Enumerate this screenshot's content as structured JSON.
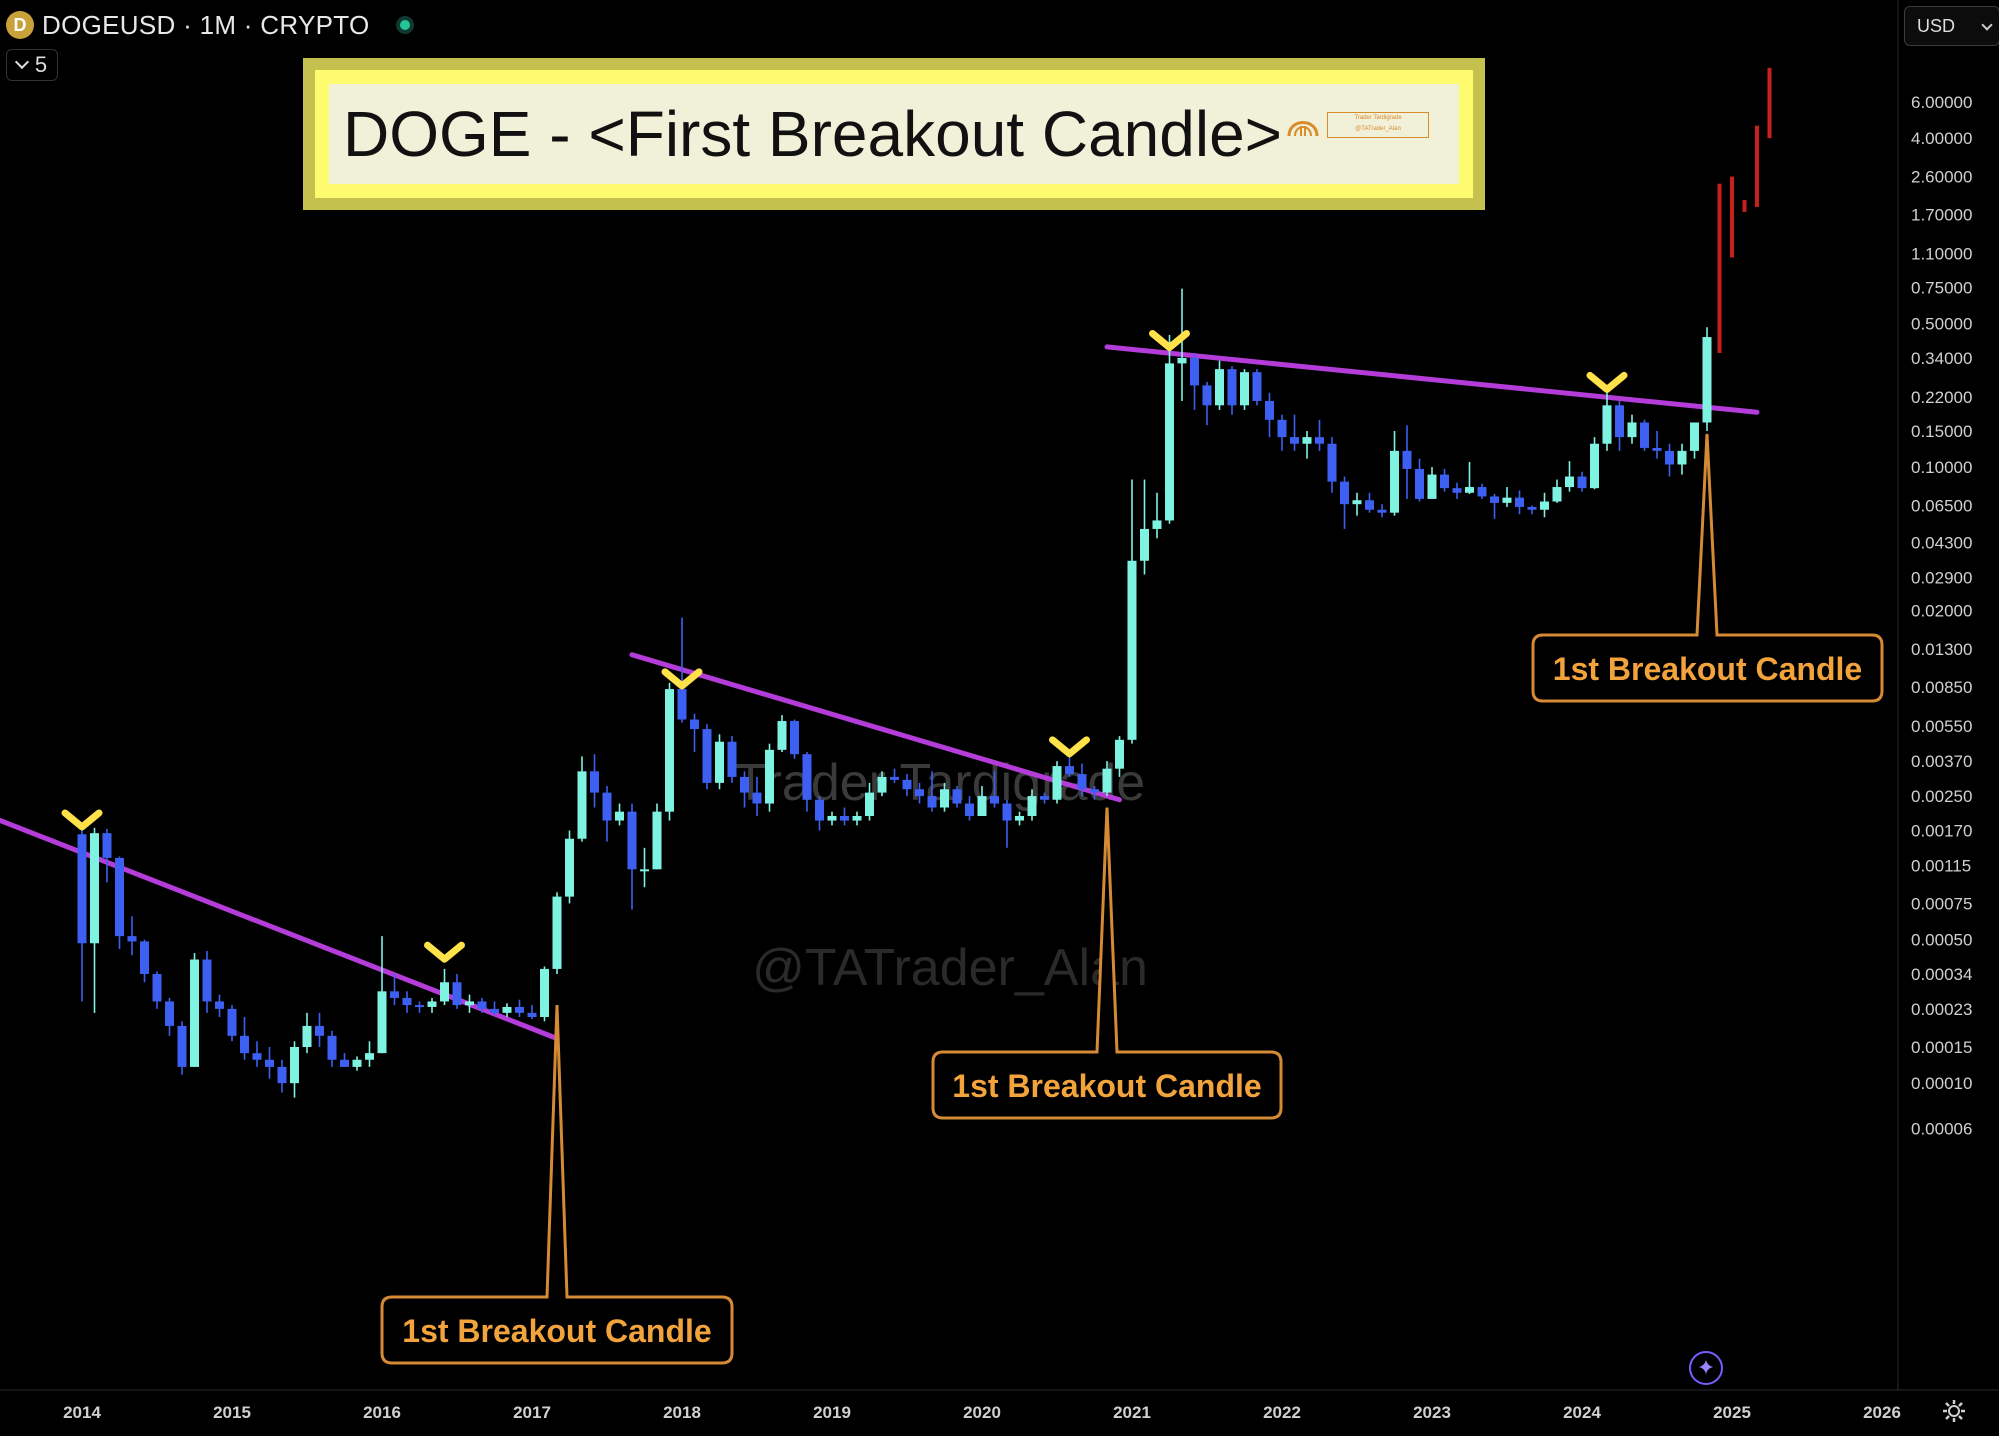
{
  "header": {
    "symbol": "DOGEUSD · 1M · CRYPTO",
    "coin_icon": "D",
    "indicator_count": "5"
  },
  "title": {
    "text": "DOGE - <First Breakout Candle>",
    "logo_text_1": "Trader Tardigrade",
    "logo_text_2": "@TATrader_Alan"
  },
  "currency_selector": "USD",
  "watermarks": [
    "Trader Tardigrade",
    "@TATrader_Alan"
  ],
  "colors": {
    "background": "#000000",
    "bull_candle": "#7ff3e1",
    "bear_candle": "#3d5ff2",
    "trendline": "#b43cd8",
    "marker": "#ffe14a",
    "callout_border": "#d58a35",
    "callout_text": "#f3a33c",
    "projection": "#c8201c",
    "axis_text": "#d0d0d0"
  },
  "chart_data": {
    "type": "candlestick",
    "scale": "log",
    "x_ticks": [
      "2014",
      "2015",
      "2016",
      "2017",
      "2018",
      "2019",
      "2020",
      "2021",
      "2022",
      "2023",
      "2024",
      "2025",
      "2026"
    ],
    "y_ticks": [
      "6.00000",
      "4.00000",
      "2.60000",
      "1.70000",
      "1.10000",
      "0.75000",
      "0.50000",
      "0.34000",
      "0.22000",
      "0.15000",
      "0.10000",
      "0.06500",
      "0.04300",
      "0.02900",
      "0.02000",
      "0.01300",
      "0.00850",
      "0.00550",
      "0.00370",
      "0.00250",
      "0.00170",
      "0.00115",
      "0.00075",
      "0.00050",
      "0.00034",
      "0.00023",
      "0.00015",
      "0.00010",
      "0.00006"
    ],
    "candles": [
      [
        "2014-01",
        0.00163,
        0.00178,
        0.00025,
        0.00048
      ],
      [
        "2014-02",
        0.00048,
        0.00175,
        0.00022,
        0.00165
      ],
      [
        "2014-03",
        0.00165,
        0.00173,
        0.00095,
        0.00125
      ],
      [
        "2014-04",
        0.00125,
        0.00127,
        0.00045,
        0.00052
      ],
      [
        "2014-05",
        0.00052,
        0.00065,
        0.00042,
        0.00049
      ],
      [
        "2014-06",
        0.00049,
        0.0005,
        0.00031,
        0.00034
      ],
      [
        "2014-07",
        0.00034,
        0.00035,
        0.00023,
        0.00025
      ],
      [
        "2014-08",
        0.00025,
        0.00026,
        0.00017,
        0.00019
      ],
      [
        "2014-09",
        0.00019,
        0.0002,
        0.00011,
        0.00012
      ],
      [
        "2014-10",
        0.00012,
        0.00043,
        0.00012,
        0.0004
      ],
      [
        "2014-11",
        0.0004,
        0.00044,
        0.00022,
        0.00025
      ],
      [
        "2014-12",
        0.00025,
        0.00027,
        0.00021,
        0.00023
      ],
      [
        "2015-01",
        0.00023,
        0.00024,
        0.00016,
        0.00017
      ],
      [
        "2015-02",
        0.00017,
        0.00021,
        0.00013,
        0.00014
      ],
      [
        "2015-03",
        0.00014,
        0.00016,
        0.00012,
        0.00013
      ],
      [
        "2015-04",
        0.00013,
        0.00015,
        0.000105,
        0.00012
      ],
      [
        "2015-05",
        0.00012,
        0.00013,
        9e-05,
        0.0001
      ],
      [
        "2015-06",
        0.0001,
        0.00016,
        8.5e-05,
        0.00015
      ],
      [
        "2015-07",
        0.00015,
        0.00022,
        0.00014,
        0.00019
      ],
      [
        "2015-08",
        0.00019,
        0.00022,
        0.00015,
        0.00017
      ],
      [
        "2015-09",
        0.00017,
        0.00018,
        0.00012,
        0.00013
      ],
      [
        "2015-10",
        0.00013,
        0.00014,
        0.00012,
        0.00012
      ],
      [
        "2015-11",
        0.00012,
        0.000135,
        0.000115,
        0.00013
      ],
      [
        "2015-12",
        0.00013,
        0.00016,
        0.00012,
        0.00014
      ],
      [
        "2016-01",
        0.00014,
        0.00052,
        0.00014,
        0.00028
      ],
      [
        "2016-02",
        0.00028,
        0.00034,
        0.00024,
        0.00026
      ],
      [
        "2016-03",
        0.00026,
        0.00028,
        0.00022,
        0.00024
      ],
      [
        "2016-04",
        0.00024,
        0.00025,
        0.00022,
        0.000235
      ],
      [
        "2016-05",
        0.000235,
        0.00026,
        0.00022,
        0.00025
      ],
      [
        "2016-06",
        0.00025,
        0.00036,
        0.00024,
        0.00031
      ],
      [
        "2016-07",
        0.00031,
        0.00034,
        0.00023,
        0.00024
      ],
      [
        "2016-08",
        0.00024,
        0.00027,
        0.00022,
        0.00025
      ],
      [
        "2016-09",
        0.00025,
        0.00026,
        0.00022,
        0.00023
      ],
      [
        "2016-10",
        0.00023,
        0.00025,
        0.000215,
        0.00022
      ],
      [
        "2016-11",
        0.00022,
        0.000245,
        0.00021,
        0.000235
      ],
      [
        "2016-12",
        0.000235,
        0.000255,
        0.00021,
        0.00022
      ],
      [
        "2017-01",
        0.00022,
        0.00024,
        0.000205,
        0.00021
      ],
      [
        "2017-02",
        0.00021,
        0.00037,
        0.0002,
        0.00036
      ],
      [
        "2017-03",
        0.00036,
        0.00085,
        0.00034,
        0.00081
      ],
      [
        "2017-04",
        0.00081,
        0.0017,
        0.00075,
        0.00155
      ],
      [
        "2017-05",
        0.00155,
        0.0039,
        0.0015,
        0.0033
      ],
      [
        "2017-06",
        0.0033,
        0.004,
        0.0022,
        0.0026
      ],
      [
        "2017-07",
        0.0026,
        0.0028,
        0.0015,
        0.0019
      ],
      [
        "2017-08",
        0.0019,
        0.0023,
        0.0018,
        0.0021
      ],
      [
        "2017-09",
        0.0021,
        0.0023,
        0.0007,
        0.0011
      ],
      [
        "2017-10",
        0.0011,
        0.0014,
        0.0009,
        0.0011
      ],
      [
        "2017-11",
        0.0011,
        0.0023,
        0.0011,
        0.0021
      ],
      [
        "2017-12",
        0.0021,
        0.0089,
        0.0019,
        0.0083
      ],
      [
        "2018-01",
        0.0083,
        0.0185,
        0.0057,
        0.0059
      ],
      [
        "2018-02",
        0.0059,
        0.0063,
        0.0041,
        0.0053
      ],
      [
        "2018-03",
        0.0053,
        0.0056,
        0.0027,
        0.0029
      ],
      [
        "2018-04",
        0.0029,
        0.005,
        0.0027,
        0.0046
      ],
      [
        "2018-05",
        0.0046,
        0.0049,
        0.0029,
        0.0031
      ],
      [
        "2018-06",
        0.0031,
        0.0033,
        0.0022,
        0.0026
      ],
      [
        "2018-07",
        0.0026,
        0.0031,
        0.002,
        0.0023
      ],
      [
        "2018-08",
        0.0023,
        0.0045,
        0.0021,
        0.0042
      ],
      [
        "2018-09",
        0.0042,
        0.0062,
        0.0041,
        0.0058
      ],
      [
        "2018-10",
        0.0058,
        0.0059,
        0.0038,
        0.004
      ],
      [
        "2018-11",
        0.004,
        0.0041,
        0.0021,
        0.0024
      ],
      [
        "2018-12",
        0.0024,
        0.0025,
        0.0017,
        0.0019
      ],
      [
        "2019-01",
        0.0019,
        0.0021,
        0.0018,
        0.002
      ],
      [
        "2019-02",
        0.002,
        0.0022,
        0.0018,
        0.0019
      ],
      [
        "2019-03",
        0.0019,
        0.0021,
        0.0018,
        0.002
      ],
      [
        "2019-04",
        0.002,
        0.0029,
        0.0019,
        0.0026
      ],
      [
        "2019-05",
        0.0026,
        0.0033,
        0.0025,
        0.0031
      ],
      [
        "2019-06",
        0.0031,
        0.0034,
        0.0029,
        0.003
      ],
      [
        "2019-07",
        0.003,
        0.0032,
        0.0025,
        0.0027
      ],
      [
        "2019-08",
        0.0027,
        0.0029,
        0.0023,
        0.0025
      ],
      [
        "2019-09",
        0.0025,
        0.0033,
        0.0021,
        0.0022
      ],
      [
        "2019-10",
        0.0022,
        0.0029,
        0.0021,
        0.0027
      ],
      [
        "2019-11",
        0.0027,
        0.0028,
        0.0022,
        0.0023
      ],
      [
        "2019-12",
        0.0023,
        0.0025,
        0.0019,
        0.002
      ],
      [
        "2020-01",
        0.002,
        0.0028,
        0.002,
        0.0025
      ],
      [
        "2020-02",
        0.0025,
        0.0033,
        0.0022,
        0.0023
      ],
      [
        "2020-03",
        0.0023,
        0.0024,
        0.0014,
        0.0019
      ],
      [
        "2020-04",
        0.0019,
        0.0021,
        0.0018,
        0.002
      ],
      [
        "2020-05",
        0.002,
        0.0027,
        0.0019,
        0.0025
      ],
      [
        "2020-06",
        0.0025,
        0.0026,
        0.0023,
        0.0024
      ],
      [
        "2020-07",
        0.0024,
        0.0037,
        0.0023,
        0.0035
      ],
      [
        "2020-08",
        0.0035,
        0.0042,
        0.0031,
        0.0032
      ],
      [
        "2020-09",
        0.0032,
        0.0036,
        0.0025,
        0.0027
      ],
      [
        "2020-10",
        0.0027,
        0.0028,
        0.0024,
        0.0026
      ],
      [
        "2020-11",
        0.0026,
        0.0037,
        0.0025,
        0.0034
      ],
      [
        "2020-12",
        0.0034,
        0.0049,
        0.0031,
        0.0047
      ],
      [
        "2021-01",
        0.0047,
        0.087,
        0.0045,
        0.035
      ],
      [
        "2021-02",
        0.035,
        0.087,
        0.03,
        0.05
      ],
      [
        "2021-03",
        0.05,
        0.075,
        0.045,
        0.055
      ],
      [
        "2021-04",
        0.055,
        0.44,
        0.053,
        0.32
      ],
      [
        "2021-05",
        0.32,
        0.74,
        0.21,
        0.34
      ],
      [
        "2021-06",
        0.34,
        0.36,
        0.19,
        0.25
      ],
      [
        "2021-07",
        0.25,
        0.26,
        0.16,
        0.2
      ],
      [
        "2021-08",
        0.2,
        0.33,
        0.19,
        0.3
      ],
      [
        "2021-09",
        0.3,
        0.31,
        0.18,
        0.2
      ],
      [
        "2021-10",
        0.2,
        0.3,
        0.19,
        0.29
      ],
      [
        "2021-11",
        0.29,
        0.3,
        0.2,
        0.21
      ],
      [
        "2021-12",
        0.21,
        0.23,
        0.14,
        0.17
      ],
      [
        "2022-01",
        0.17,
        0.18,
        0.12,
        0.14
      ],
      [
        "2022-02",
        0.14,
        0.18,
        0.12,
        0.13
      ],
      [
        "2022-03",
        0.13,
        0.15,
        0.11,
        0.14
      ],
      [
        "2022-04",
        0.14,
        0.17,
        0.12,
        0.13
      ],
      [
        "2022-05",
        0.13,
        0.14,
        0.075,
        0.085
      ],
      [
        "2022-06",
        0.085,
        0.09,
        0.05,
        0.066
      ],
      [
        "2022-07",
        0.066,
        0.075,
        0.058,
        0.069
      ],
      [
        "2022-08",
        0.069,
        0.075,
        0.06,
        0.062
      ],
      [
        "2022-09",
        0.062,
        0.066,
        0.057,
        0.06
      ],
      [
        "2022-10",
        0.06,
        0.15,
        0.058,
        0.12
      ],
      [
        "2022-11",
        0.12,
        0.16,
        0.07,
        0.098
      ],
      [
        "2022-12",
        0.098,
        0.11,
        0.068,
        0.07
      ],
      [
        "2023-01",
        0.07,
        0.1,
        0.07,
        0.092
      ],
      [
        "2023-02",
        0.092,
        0.098,
        0.076,
        0.079
      ],
      [
        "2023-03",
        0.079,
        0.084,
        0.07,
        0.075
      ],
      [
        "2023-04",
        0.075,
        0.106,
        0.074,
        0.08
      ],
      [
        "2023-05",
        0.08,
        0.083,
        0.07,
        0.072
      ],
      [
        "2023-06",
        0.072,
        0.074,
        0.056,
        0.067
      ],
      [
        "2023-07",
        0.067,
        0.08,
        0.064,
        0.071
      ],
      [
        "2023-08",
        0.071,
        0.077,
        0.059,
        0.064
      ],
      [
        "2023-09",
        0.064,
        0.065,
        0.059,
        0.062
      ],
      [
        "2023-10",
        0.062,
        0.075,
        0.057,
        0.068
      ],
      [
        "2023-11",
        0.068,
        0.087,
        0.067,
        0.08
      ],
      [
        "2023-12",
        0.08,
        0.107,
        0.076,
        0.09
      ],
      [
        "2024-01",
        0.09,
        0.095,
        0.076,
        0.079
      ],
      [
        "2024-02",
        0.079,
        0.14,
        0.078,
        0.13
      ],
      [
        "2024-03",
        0.13,
        0.23,
        0.12,
        0.2
      ],
      [
        "2024-04",
        0.2,
        0.21,
        0.12,
        0.14
      ],
      [
        "2024-05",
        0.14,
        0.18,
        0.13,
        0.165
      ],
      [
        "2024-06",
        0.165,
        0.17,
        0.12,
        0.124
      ],
      [
        "2024-07",
        0.124,
        0.15,
        0.11,
        0.12
      ],
      [
        "2024-08",
        0.12,
        0.13,
        0.09,
        0.103
      ],
      [
        "2024-09",
        0.103,
        0.13,
        0.092,
        0.12
      ],
      [
        "2024-10",
        0.12,
        0.16,
        0.11,
        0.165
      ],
      [
        "2024-11",
        0.165,
        0.48,
        0.15,
        0.43
      ]
    ],
    "trendlines": [
      {
        "from": [
          "2013-06",
          0.00195
        ],
        "to": [
          "2017-03",
          0.000165
        ]
      },
      {
        "from": [
          "2017-09",
          0.0122
        ],
        "to": [
          "2020-12",
          0.0024
        ]
      },
      {
        "from": [
          "2020-11",
          0.385
        ],
        "to": [
          "2025-03",
          0.185
        ]
      }
    ],
    "markers": [
      [
        "2014-01",
        0.00185
      ],
      [
        "2016-06",
        0.00042
      ],
      [
        "2018-01",
        0.009
      ],
      [
        "2020-08",
        0.0042
      ],
      [
        "2021-04",
        0.4
      ],
      [
        "2024-03",
        0.25
      ]
    ],
    "callouts": [
      {
        "text": "1st Breakout Candle",
        "pointer": [
          "2017-03",
          0.00024
        ]
      },
      {
        "text": "1st Breakout Candle",
        "pointer": [
          "2020-11",
          0.0022
        ]
      },
      {
        "text": "1st Breakout Candle",
        "pointer": [
          "2024-11",
          0.145
        ]
      }
    ],
    "projection": [
      {
        "date": "2024-12",
        "top": 2.4,
        "bottom": 0.36
      },
      {
        "date": "2025-01",
        "top": 2.6,
        "bottom": 1.05
      },
      {
        "date": "2025-02",
        "top": 2.0,
        "bottom": 1.75
      },
      {
        "date": "2025-03",
        "top": 4.6,
        "bottom": 1.85
      },
      {
        "date": "2025-04",
        "top": 8.8,
        "bottom": 4.0
      }
    ]
  }
}
